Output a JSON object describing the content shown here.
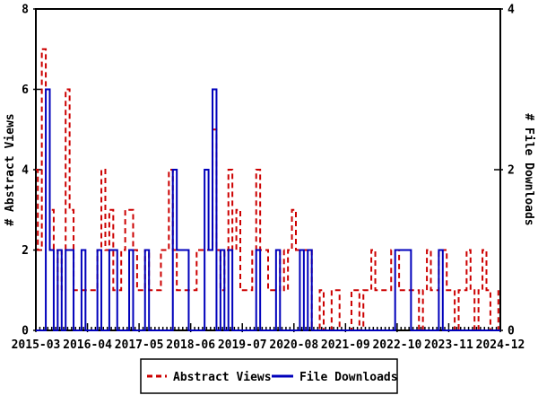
{
  "chart_data": {
    "type": "line",
    "style": "histeps",
    "title": "",
    "grid": false,
    "background": "#ffffff",
    "border_color": "#000000",
    "months": [
      "2015-03",
      "2015-04",
      "2015-05",
      "2015-06",
      "2015-07",
      "2015-08",
      "2015-09",
      "2015-10",
      "2015-11",
      "2015-12",
      "2016-01",
      "2016-02",
      "2016-03",
      "2016-04",
      "2016-05",
      "2016-06",
      "2016-07",
      "2016-08",
      "2016-09",
      "2016-10",
      "2016-11",
      "2016-12",
      "2017-01",
      "2017-02",
      "2017-03",
      "2017-04",
      "2017-05",
      "2017-06",
      "2017-07",
      "2017-08",
      "2017-09",
      "2017-10",
      "2017-11",
      "2017-12",
      "2018-01",
      "2018-02",
      "2018-03",
      "2018-04",
      "2018-05",
      "2018-06",
      "2018-07",
      "2018-08",
      "2018-09",
      "2018-10",
      "2018-11",
      "2018-12",
      "2019-01",
      "2019-02",
      "2019-03",
      "2019-04",
      "2019-05",
      "2019-06",
      "2019-07",
      "2019-08",
      "2019-09",
      "2019-10",
      "2019-11",
      "2019-12",
      "2020-01",
      "2020-02",
      "2020-03",
      "2020-04",
      "2020-05",
      "2020-06",
      "2020-07",
      "2020-08",
      "2020-09",
      "2020-10",
      "2020-11",
      "2020-12",
      "2021-01",
      "2021-02",
      "2021-03",
      "2021-04",
      "2021-05",
      "2021-06",
      "2021-07",
      "2021-08",
      "2021-09",
      "2021-10",
      "2021-11",
      "2021-12",
      "2022-01",
      "2022-02",
      "2022-03",
      "2022-04",
      "2022-05",
      "2022-06",
      "2022-07",
      "2022-08",
      "2022-09",
      "2022-10",
      "2022-11",
      "2022-12",
      "2023-01",
      "2023-02",
      "2023-03",
      "2023-04",
      "2023-05",
      "2023-06",
      "2023-07",
      "2023-08",
      "2023-09",
      "2023-10",
      "2023-11",
      "2023-12",
      "2024-01",
      "2024-02",
      "2024-03",
      "2024-04",
      "2024-05",
      "2024-06",
      "2024-07",
      "2024-08",
      "2024-09",
      "2024-10",
      "2024-11",
      "2024-12"
    ],
    "series": [
      {
        "name": "Abstract Views",
        "axis": "left",
        "color": "#cc0000",
        "dashed": true,
        "values": [
          4,
          2,
          7,
          6,
          3,
          2,
          1,
          2,
          6,
          3,
          1,
          1,
          1,
          1,
          1,
          1,
          2,
          4,
          2,
          3,
          1,
          1,
          2,
          3,
          3,
          2,
          1,
          1,
          2,
          1,
          1,
          1,
          2,
          2,
          4,
          2,
          1,
          1,
          1,
          1,
          1,
          2,
          2,
          2,
          2,
          5,
          2,
          1,
          2,
          4,
          2,
          3,
          1,
          1,
          1,
          2,
          4,
          2,
          2,
          1,
          1,
          1,
          2,
          1,
          2,
          3,
          2,
          2,
          2,
          2,
          0,
          0,
          1,
          0,
          0,
          1,
          1,
          0,
          0,
          0,
          1,
          1,
          0,
          1,
          1,
          2,
          1,
          1,
          1,
          1,
          2,
          2,
          1,
          1,
          1,
          1,
          1,
          0,
          1,
          2,
          1,
          1,
          2,
          2,
          1,
          1,
          0,
          1,
          1,
          2,
          1,
          0,
          1,
          2,
          1,
          0,
          0,
          1
        ]
      },
      {
        "name": "File Downloads",
        "axis": "right",
        "color": "#0000bb",
        "dashed": false,
        "values": [
          0,
          0,
          0,
          3,
          1,
          0,
          1,
          0,
          1,
          1,
          0,
          0,
          1,
          0,
          0,
          0,
          1,
          0,
          0,
          1,
          1,
          0,
          0,
          0,
          1,
          0,
          0,
          0,
          1,
          0,
          0,
          0,
          0,
          0,
          0,
          2,
          1,
          1,
          1,
          0,
          0,
          0,
          0,
          2,
          1,
          3,
          0,
          1,
          0,
          1,
          0,
          0,
          0,
          0,
          0,
          0,
          1,
          0,
          0,
          0,
          0,
          1,
          0,
          0,
          0,
          0,
          0,
          1,
          0,
          1,
          0,
          0,
          0,
          0,
          0,
          0,
          0,
          0,
          0,
          0,
          0,
          0,
          0,
          0,
          0,
          0,
          0,
          0,
          0,
          0,
          0,
          1,
          1,
          1,
          1,
          0,
          0,
          0,
          0,
          0,
          0,
          0,
          1,
          0,
          0,
          0,
          0,
          0,
          0,
          0,
          0,
          0,
          0,
          0,
          0,
          0,
          0,
          0
        ]
      }
    ],
    "left_axis": {
      "label": "# Abstract Views",
      "range": [
        0,
        8
      ],
      "ticks": [
        0,
        2,
        4,
        6,
        8
      ]
    },
    "right_axis": {
      "label": "# File Downloads",
      "range": [
        0,
        4
      ],
      "ticks": [
        0,
        2,
        4
      ]
    },
    "x_axis": {
      "major_tick_month_indices": [
        0,
        13,
        26,
        39,
        52,
        65,
        78,
        91,
        104,
        117
      ],
      "major_tick_labels": [
        "2015-03",
        "2016-04",
        "2017-05",
        "2018-06",
        "2019-07",
        "2020-08",
        "2021-09",
        "2022-10",
        "2023-11",
        "2024-12"
      ],
      "minor_ticks": "every month"
    },
    "legend": {
      "position": "bottom-center",
      "entries": [
        {
          "label": "Abstract Views"
        },
        {
          "label": "File Downloads"
        }
      ]
    }
  }
}
